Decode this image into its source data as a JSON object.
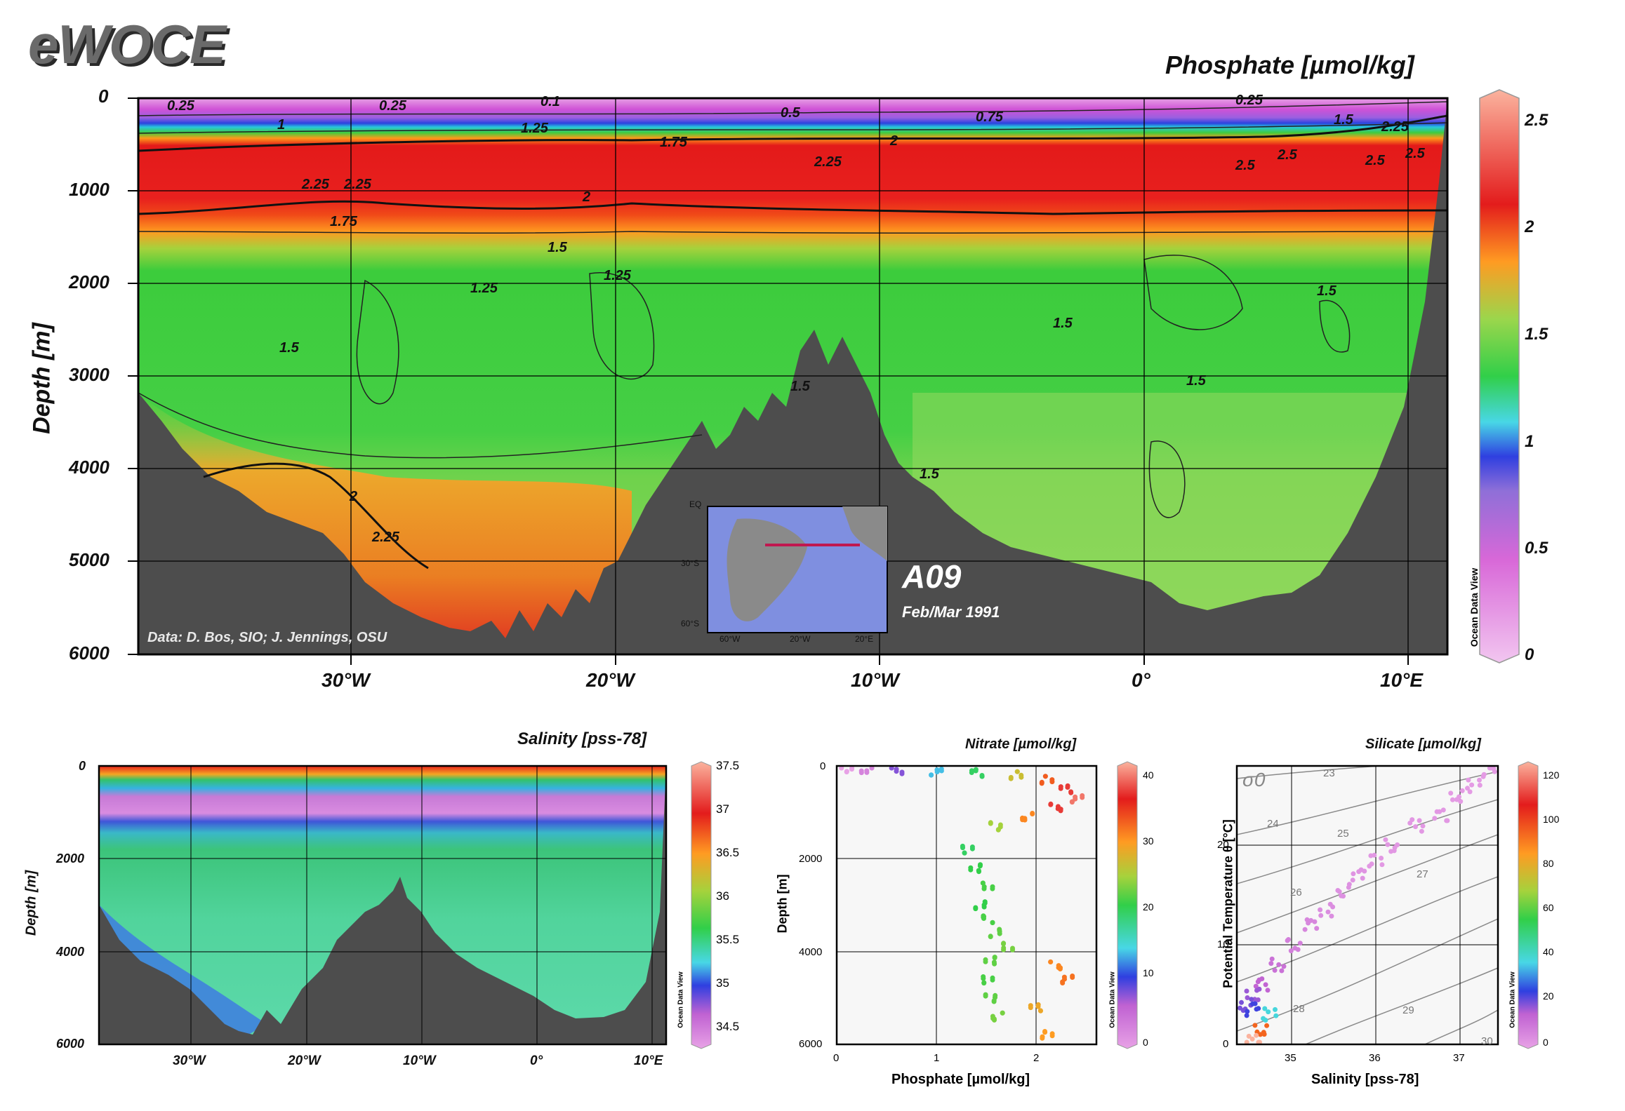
{
  "logo": "eWOCE",
  "main": {
    "title": "Phosphate [µmol/kg]",
    "ylabel": "Depth [m]",
    "yticks": [
      "0",
      "1000",
      "2000",
      "3000",
      "4000",
      "5000",
      "6000"
    ],
    "xticks": [
      "30°W",
      "20°W",
      "10°W",
      "0°",
      "10°E"
    ],
    "credit": "Data: D. Bos, SIO; J. Jennings, OSU",
    "section": "A09",
    "dates": "Feb/Mar 1991",
    "colorbar_ticks": [
      "2.5",
      "2",
      "1.5",
      "1",
      "0.5",
      "0"
    ],
    "contour_labels": [
      "0.25",
      "0.25",
      "0.1",
      "0.5",
      "0.75",
      "0.25",
      "1",
      "1.25",
      "1.5",
      "1.75",
      "2",
      "2.25",
      "2.25",
      "2.25",
      "2.5",
      "2.5",
      "2.5",
      "2.25",
      "2.5",
      "2",
      "1.75",
      "1.5",
      "1.25",
      "1.25",
      "1.5",
      "1.5",
      "1.5",
      "1.5",
      "1.5",
      "1.5",
      "2",
      "2.25"
    ],
    "odv": "Ocean Data View",
    "inset": {
      "lat_labels": [
        "EQ",
        "30°S",
        "60°S"
      ],
      "lon_labels": [
        "60°W",
        "20°W",
        "20°E"
      ]
    }
  },
  "salinity_panel": {
    "title": "Salinity [pss-78]",
    "ylabel": "Depth [m]",
    "yticks": [
      "0",
      "2000",
      "4000",
      "6000"
    ],
    "xticks": [
      "30°W",
      "20°W",
      "10°W",
      "0°",
      "10°E"
    ],
    "colorbar_ticks": [
      "37.5",
      "37",
      "36.5",
      "36",
      "35.5",
      "35",
      "34.5"
    ],
    "odv": "Ocean Data View"
  },
  "nitrate_panel": {
    "title": "Nitrate [µmol/kg]",
    "ylabel": "Depth [m]",
    "xlabel": "Phosphate [µmol/kg]",
    "yticks": [
      "0",
      "2000",
      "4000",
      "6000"
    ],
    "xticks": [
      "0",
      "1",
      "2"
    ],
    "colorbar_ticks": [
      "40",
      "30",
      "20",
      "10",
      "0"
    ],
    "odv": "Ocean Data View"
  },
  "silicate_panel": {
    "title": "Silicate [µmol/kg]",
    "ylabel": "Potential Temperature θ [°C]",
    "xlabel": "Salinity [pss-78]",
    "yticks": [
      "0",
      "10",
      "20"
    ],
    "xticks": [
      "35",
      "36",
      "37"
    ],
    "sigma_label": "σ0",
    "isopycnal_labels": [
      "23",
      "24",
      "25",
      "26",
      "27",
      "28",
      "29",
      "30"
    ],
    "colorbar_ticks": [
      "120",
      "100",
      "80",
      "60",
      "40",
      "20",
      "0"
    ],
    "odv": "Ocean Data View"
  },
  "chart_data": [
    {
      "type": "heatmap",
      "title": "Phosphate [µmol/kg]",
      "xlabel": "",
      "ylabel": "Depth [m]",
      "x_range": [
        -38,
        11
      ],
      "ylim": [
        6000,
        0
      ],
      "colorbar_range": [
        0,
        2.6
      ],
      "depth_profile": {
        "depth": [
          0,
          200,
          400,
          600,
          900,
          1200,
          1500,
          2000,
          3000,
          4000,
          5000
        ],
        "phosphate": [
          0.2,
          0.5,
          1.2,
          2.0,
          2.4,
          2.1,
          1.6,
          1.4,
          1.45,
          1.55,
          1.6
        ]
      },
      "bottom_profile": {
        "lon": [
          -38,
          -35,
          -32,
          -30,
          -28,
          -26,
          -24,
          -22,
          -20,
          -18,
          -16,
          -14,
          -12,
          -10,
          -8,
          -6,
          -4,
          -2,
          0,
          2,
          4,
          6,
          8,
          10,
          11
        ],
        "depth": [
          3300,
          4000,
          4300,
          4800,
          5400,
          5700,
          5800,
          5300,
          5000,
          4300,
          3900,
          3600,
          2600,
          3400,
          4200,
          4600,
          5000,
          5100,
          5300,
          5400,
          5300,
          5100,
          4600,
          3000,
          300
        ]
      }
    },
    {
      "type": "heatmap",
      "title": "Salinity [pss-78]",
      "ylabel": "Depth [m]",
      "x_range": [
        -38,
        11
      ],
      "ylim": [
        6000,
        0
      ],
      "colorbar_range": [
        34.3,
        37.5
      ]
    },
    {
      "type": "scatter",
      "title": "Nitrate [µmol/kg]",
      "xlabel": "Phosphate [µmol/kg]",
      "ylabel": "Depth [m]",
      "xlim": [
        0,
        2.6
      ],
      "ylim": [
        6000,
        0
      ],
      "color_range": [
        0,
        42
      ],
      "x": [
        0.1,
        0.3,
        0.6,
        1.0,
        1.4,
        1.8,
        2.1,
        2.3,
        2.4,
        2.2,
        1.9,
        1.6,
        1.3,
        1.4,
        1.5,
        1.45,
        1.5,
        1.6,
        1.7,
        1.55,
        1.5,
        1.55,
        1.6,
        2.2,
        2.3,
        2.0,
        2.1
      ],
      "y": [
        50,
        80,
        100,
        120,
        150,
        200,
        300,
        500,
        700,
        900,
        1100,
        1300,
        1800,
        2200,
        2600,
        3000,
        3300,
        3600,
        3900,
        4200,
        4600,
        5000,
        5400,
        4300,
        4600,
        5200,
        5800
      ],
      "color": [
        0,
        3,
        8,
        14,
        20,
        28,
        34,
        38,
        40,
        38,
        32,
        26,
        20,
        21,
        22,
        21,
        22,
        23,
        24,
        23,
        22,
        23,
        24,
        32,
        33,
        30,
        31
      ]
    },
    {
      "type": "scatter",
      "title": "Silicate [µmol/kg]",
      "xlabel": "Salinity [pss-78]",
      "ylabel": "Potential Temperature θ [°C]",
      "xlim": [
        34.3,
        37.5
      ],
      "ylim": [
        0,
        28
      ],
      "color_range": [
        0,
        125
      ],
      "x": [
        37.4,
        37.2,
        37.0,
        36.8,
        36.5,
        36.2,
        36.0,
        35.8,
        35.6,
        35.4,
        35.2,
        35.0,
        34.8,
        34.6,
        34.5,
        34.4,
        34.5,
        34.7,
        34.6,
        34.5
      ],
      "y": [
        27.5,
        26,
        25,
        23,
        22,
        20,
        18.5,
        17,
        15.5,
        13.5,
        12,
        10,
        8,
        6,
        5,
        4,
        3.5,
        3,
        1.5,
        0.3
      ],
      "color": [
        2,
        2,
        2,
        3,
        3,
        3,
        3,
        4,
        5,
        6,
        8,
        10,
        14,
        18,
        22,
        25,
        30,
        45,
        100,
        125
      ]
    }
  ]
}
